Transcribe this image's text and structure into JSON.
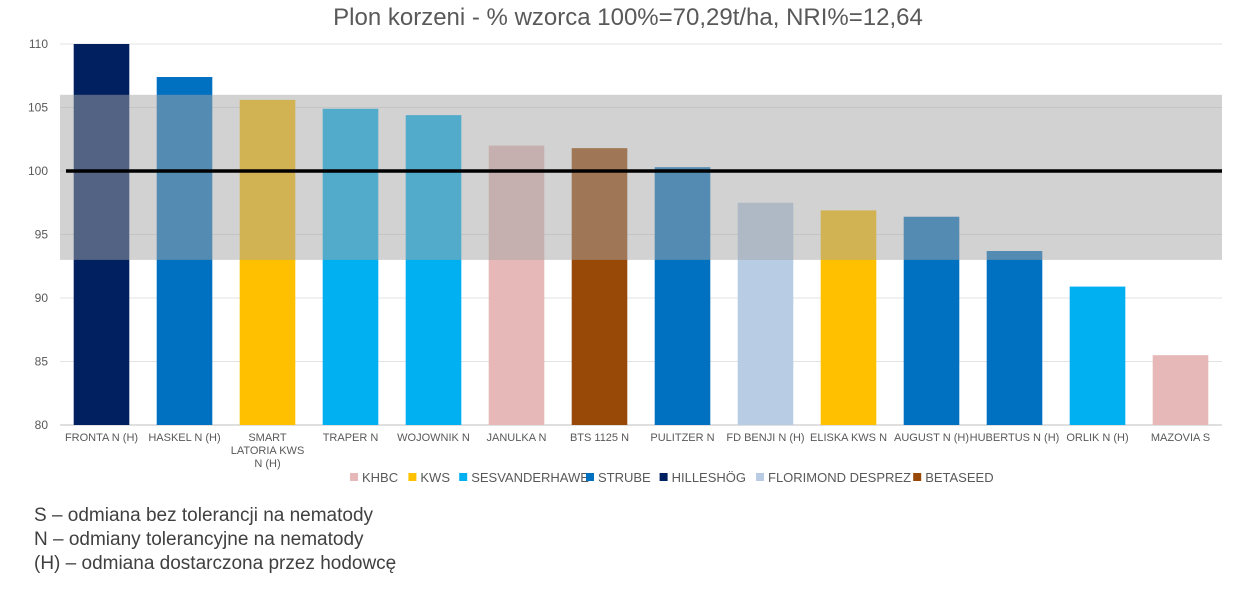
{
  "chart_data": {
    "type": "bar",
    "title": "Plon korzeni - % wzorca 100%=70,29t/ha, NRI%=12,64",
    "xlabel": "",
    "ylabel": "",
    "ylim": [
      80,
      110
    ],
    "yticks": [
      80,
      85,
      90,
      95,
      100,
      105,
      110
    ],
    "grid": true,
    "legend_position": "bottom",
    "reference_line": 100,
    "shaded_band": [
      93,
      106
    ],
    "categories": [
      "FRONTA N (H)",
      "HASKEL N (H)",
      "SMART LATORIA KWS N (H)",
      "TRAPER N",
      "WOJOWNIK N",
      "JANULKA N",
      "BTS 1125 N",
      "PULITZER N",
      "FD BENJI N (H)",
      "ELISKA KWS N",
      "AUGUST N (H)",
      "HUBERTUS N (H)",
      "ORLIK N (H)",
      "MAZOVIA S"
    ],
    "values": [
      110,
      107.4,
      105.6,
      104.9,
      104.4,
      102.0,
      101.8,
      100.3,
      97.5,
      96.9,
      96.4,
      93.7,
      90.9,
      85.5
    ],
    "breeders": [
      "HILLESHÖG",
      "STRUBE",
      "KWS",
      "SESVANDERHAWE",
      "SESVANDERHAWE",
      "KHBC",
      "BETASEED",
      "STRUBE",
      "FLORIMOND DESPREZ",
      "KWS",
      "STRUBE",
      "STRUBE",
      "SESVANDERHAWE",
      "KHBC"
    ],
    "legend": [
      {
        "name": "KHBC",
        "color": "#E6B9B8"
      },
      {
        "name": "KWS",
        "color": "#FFC000"
      },
      {
        "name": "SESVANDERHAWE",
        "color": "#00B0F0"
      },
      {
        "name": "STRUBE",
        "color": "#0070C0"
      },
      {
        "name": "HILLESHÖG",
        "color": "#002060"
      },
      {
        "name": "FLORIMOND DESPREZ",
        "color": "#B8CCE4"
      },
      {
        "name": "BETASEED",
        "color": "#984807"
      }
    ]
  },
  "notes": [
    "S – odmiana bez tolerancji na nematody",
    "N – odmiany tolerancyjne na nematody",
    "(H) – odmiana dostarczona przez hodowcę"
  ]
}
